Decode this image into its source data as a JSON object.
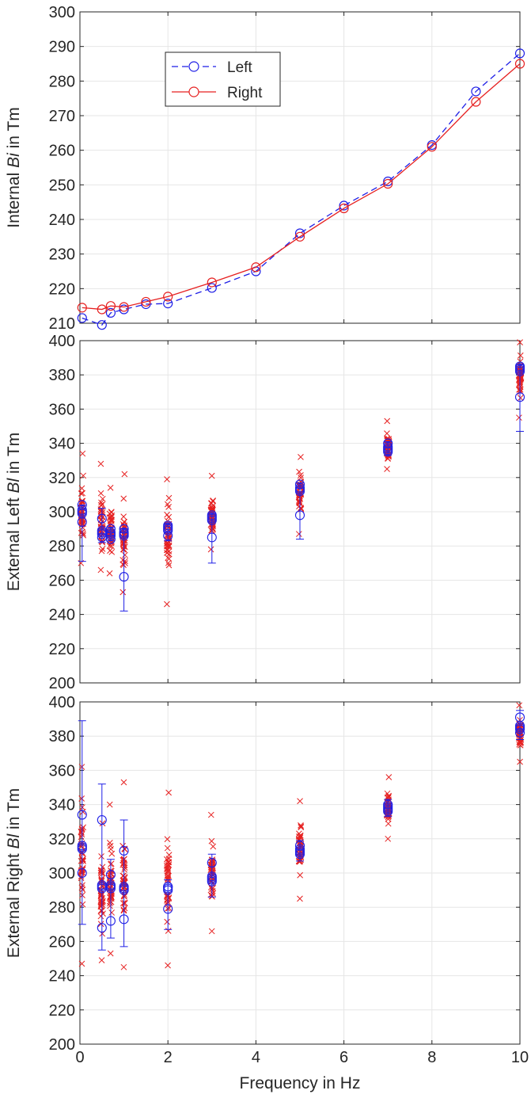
{
  "colors": {
    "left": "#1f1fe6",
    "right": "#e62020",
    "grid": "#e6e6e6",
    "axis": "#262626"
  },
  "chart_data": [
    {
      "type": "line",
      "title": "",
      "xlabel": "",
      "ylabel_prefix": "Internal ",
      "ylabel_italic": "Bi",
      "ylabel_suffix": " in Tm",
      "xlim": [
        0,
        10
      ],
      "ylim": [
        210,
        300
      ],
      "xticks": [
        0,
        2,
        4,
        6,
        8,
        10
      ],
      "yticks": [
        210,
        220,
        230,
        240,
        250,
        260,
        270,
        280,
        290,
        300
      ],
      "grid": true,
      "legend": "top-left",
      "series": [
        {
          "name": "Left",
          "style": "dashed-circle",
          "color": "#1f1fe6",
          "x": [
            0.05,
            0.5,
            0.7,
            1,
            1.5,
            2,
            3,
            4,
            5,
            6,
            7,
            8,
            9,
            10
          ],
          "y": [
            211.5,
            209.5,
            213,
            214,
            215.5,
            215.7,
            220.2,
            225,
            236,
            244,
            251,
            261.5,
            277,
            288
          ]
        },
        {
          "name": "Right",
          "style": "solid-circle",
          "color": "#e62020",
          "x": [
            0.05,
            0.5,
            0.7,
            1,
            1.5,
            2,
            3,
            4,
            5,
            6,
            7,
            8,
            9,
            10
          ],
          "y": [
            214.5,
            214,
            215,
            214.7,
            216.2,
            217.7,
            221.8,
            226.2,
            235,
            243.2,
            250.3,
            261,
            274,
            285
          ]
        }
      ]
    },
    {
      "type": "scatter",
      "title": "",
      "xlabel": "",
      "ylabel_prefix": "External Left ",
      "ylabel_italic": "Bl",
      "ylabel_suffix": " in Tm",
      "xlim": [
        0,
        10
      ],
      "ylim": [
        200,
        400
      ],
      "xticks": [
        0,
        2,
        4,
        6,
        8,
        10
      ],
      "yticks": [
        200,
        220,
        240,
        260,
        280,
        300,
        320,
        340,
        360,
        380,
        400
      ],
      "grid": true,
      "clusters": [
        {
          "x": 0.05,
          "min": 270,
          "max": 334,
          "mean": 300,
          "low": 294,
          "high": 304,
          "err_low": 271,
          "err_high": 304
        },
        {
          "x": 0.5,
          "min": 266,
          "max": 328,
          "mean": 288,
          "low": 285,
          "high": 296,
          "err_low": 282,
          "err_high": 302
        },
        {
          "x": 0.7,
          "min": 264,
          "max": 314,
          "mean": 287,
          "low": 284,
          "high": 290,
          "err_low": 283,
          "err_high": 291
        },
        {
          "x": 1,
          "min": 253,
          "max": 322,
          "mean": 287,
          "low": 262,
          "high": 290,
          "err_low": 242,
          "err_high": 290
        },
        {
          "x": 2,
          "min": 246,
          "max": 319,
          "mean": 290,
          "low": 286,
          "high": 292,
          "err_low": 283,
          "err_high": 293
        },
        {
          "x": 3,
          "min": 278,
          "max": 321,
          "mean": 296,
          "low": 285,
          "high": 298,
          "err_low": 270,
          "err_high": 299
        },
        {
          "x": 5,
          "min": 287,
          "max": 332,
          "mean": 313,
          "low": 298,
          "high": 316,
          "err_low": 284,
          "err_high": 317
        },
        {
          "x": 7,
          "min": 325,
          "max": 353,
          "mean": 337,
          "low": 335,
          "high": 340,
          "err_low": 333,
          "err_high": 341
        },
        {
          "x": 10,
          "min": 355,
          "max": 399,
          "mean": 383,
          "low": 367,
          "high": 385,
          "err_low": 347,
          "err_high": 386
        }
      ]
    },
    {
      "type": "scatter",
      "title": "",
      "xlabel": "Frequency in Hz",
      "ylabel_prefix": "External Right ",
      "ylabel_italic": "Bl",
      "ylabel_suffix": " in Tm",
      "xlim": [
        0,
        10
      ],
      "ylim": [
        200,
        400
      ],
      "xticks": [
        0,
        2,
        4,
        6,
        8,
        10
      ],
      "yticks": [
        200,
        220,
        240,
        260,
        280,
        300,
        320,
        340,
        360,
        380,
        400
      ],
      "grid": true,
      "clusters": [
        {
          "x": 0.05,
          "min": 247,
          "max": 362,
          "mean": 315,
          "low": 300,
          "high": 334,
          "err_low": 270,
          "err_high": 389
        },
        {
          "x": 0.5,
          "min": 249,
          "max": 329,
          "mean": 292,
          "low": 268,
          "high": 331,
          "err_low": 255,
          "err_high": 352
        },
        {
          "x": 0.7,
          "min": 253,
          "max": 340,
          "mean": 292,
          "low": 272,
          "high": 299,
          "err_low": 262,
          "err_high": 308
        },
        {
          "x": 1,
          "min": 245,
          "max": 353,
          "mean": 291,
          "low": 273,
          "high": 313,
          "err_low": 257,
          "err_high": 331
        },
        {
          "x": 2,
          "min": 246,
          "max": 347,
          "mean": 291,
          "low": 279,
          "high": 292,
          "err_low": 267,
          "err_high": 296
        },
        {
          "x": 3,
          "min": 266,
          "max": 334,
          "mean": 297,
          "low": 295,
          "high": 306,
          "err_low": 286,
          "err_high": 311
        },
        {
          "x": 5,
          "min": 285,
          "max": 342,
          "mean": 313,
          "low": 311,
          "high": 316,
          "err_low": 307,
          "err_high": 319
        },
        {
          "x": 7,
          "min": 320,
          "max": 356,
          "mean": 338,
          "low": 336,
          "high": 340,
          "err_low": 333,
          "err_high": 343
        },
        {
          "x": 10,
          "min": 365,
          "max": 398,
          "mean": 385,
          "low": 382,
          "high": 391,
          "err_low": 378,
          "err_high": 395
        }
      ]
    }
  ]
}
